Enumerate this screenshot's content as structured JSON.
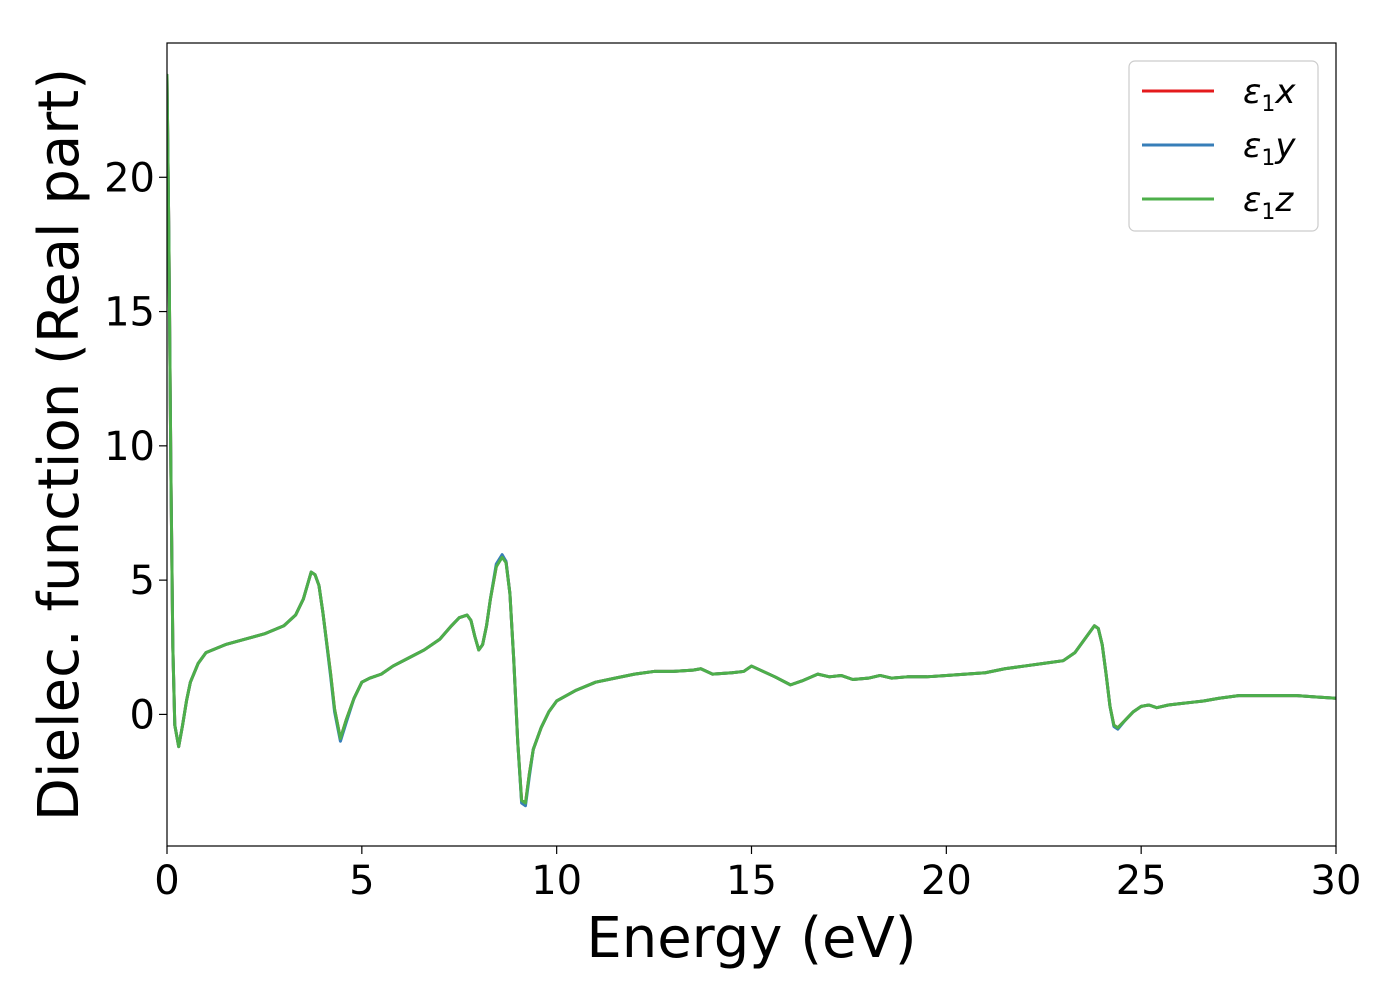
{
  "chart_data": {
    "type": "line",
    "xlabel": "Energy (eV)",
    "ylabel": "Dielec. function (Real part)",
    "xlim": [
      0,
      30
    ],
    "ylim": [
      -4.9,
      25.0
    ],
    "xticks": [
      0,
      5,
      10,
      15,
      20,
      25,
      30
    ],
    "yticks": [
      0,
      5,
      10,
      15,
      20
    ],
    "grid": false,
    "legend_position": "top-right",
    "series": [
      {
        "name": "ε1x",
        "legend": {
          "symbol": "ε",
          "sub": "1",
          "var": "x"
        },
        "color": "#e41a1c",
        "x": [
          0.0,
          0.05,
          0.1,
          0.15,
          0.2,
          0.3,
          0.4,
          0.5,
          0.6,
          0.8,
          1.0,
          1.5,
          2.0,
          2.5,
          3.0,
          3.3,
          3.5,
          3.6,
          3.7,
          3.8,
          3.9,
          4.0,
          4.2,
          4.3,
          4.45,
          4.6,
          4.8,
          5.0,
          5.2,
          5.5,
          5.8,
          6.2,
          6.6,
          7.0,
          7.3,
          7.5,
          7.7,
          7.8,
          7.9,
          8.0,
          8.1,
          8.2,
          8.3,
          8.45,
          8.6,
          8.7,
          8.8,
          8.9,
          9.0,
          9.1,
          9.2,
          9.3,
          9.4,
          9.6,
          9.8,
          10.0,
          10.5,
          11.0,
          11.5,
          12.0,
          12.5,
          13.0,
          13.5,
          13.7,
          14.0,
          14.5,
          14.8,
          15.0,
          15.3,
          15.6,
          16.0,
          16.3,
          16.7,
          17.0,
          17.3,
          17.6,
          18.0,
          18.3,
          18.6,
          19.0,
          19.5,
          20.0,
          20.5,
          21.0,
          21.5,
          22.0,
          22.5,
          23.0,
          23.3,
          23.6,
          23.8,
          23.9,
          24.0,
          24.1,
          24.2,
          24.3,
          24.4,
          24.6,
          24.8,
          25.0,
          25.2,
          25.4,
          25.7,
          26.0,
          26.3,
          26.6,
          27.0,
          27.5,
          28.0,
          28.5,
          29.0,
          29.5,
          30.0
        ],
        "y": [
          23.8,
          17.5,
          9.0,
          2.5,
          -0.4,
          -1.2,
          -0.4,
          0.5,
          1.2,
          1.9,
          2.3,
          2.6,
          2.8,
          3.0,
          3.3,
          3.7,
          4.3,
          4.8,
          5.3,
          5.2,
          4.8,
          3.8,
          1.5,
          0.2,
          -0.9,
          -0.2,
          0.6,
          1.2,
          1.35,
          1.5,
          1.8,
          2.1,
          2.4,
          2.8,
          3.3,
          3.6,
          3.7,
          3.5,
          2.9,
          2.4,
          2.6,
          3.3,
          4.3,
          5.5,
          5.9,
          5.7,
          4.5,
          2.0,
          -1.0,
          -3.2,
          -3.3,
          -2.2,
          -1.3,
          -0.5,
          0.1,
          0.5,
          0.9,
          1.2,
          1.35,
          1.5,
          1.6,
          1.6,
          1.65,
          1.7,
          1.5,
          1.55,
          1.6,
          1.8,
          1.6,
          1.4,
          1.1,
          1.25,
          1.5,
          1.4,
          1.45,
          1.3,
          1.35,
          1.45,
          1.35,
          1.4,
          1.4,
          1.45,
          1.5,
          1.55,
          1.7,
          1.8,
          1.9,
          2.0,
          2.3,
          2.9,
          3.3,
          3.2,
          2.6,
          1.5,
          0.3,
          -0.4,
          -0.5,
          -0.2,
          0.1,
          0.3,
          0.35,
          0.25,
          0.35,
          0.4,
          0.45,
          0.5,
          0.6,
          0.7,
          0.7,
          0.7,
          0.7,
          0.65,
          0.6
        ]
      },
      {
        "name": "ε1y",
        "legend": {
          "symbol": "ε",
          "sub": "1",
          "var": "y"
        },
        "color": "#377eb8",
        "x": [
          0.0,
          0.05,
          0.1,
          0.15,
          0.2,
          0.3,
          0.4,
          0.5,
          0.6,
          0.8,
          1.0,
          1.5,
          2.0,
          2.5,
          3.0,
          3.3,
          3.5,
          3.6,
          3.7,
          3.8,
          3.9,
          4.0,
          4.2,
          4.3,
          4.45,
          4.6,
          4.8,
          5.0,
          5.2,
          5.5,
          5.8,
          6.2,
          6.6,
          7.0,
          7.3,
          7.5,
          7.7,
          7.8,
          7.9,
          8.0,
          8.1,
          8.2,
          8.3,
          8.45,
          8.6,
          8.7,
          8.8,
          8.9,
          9.0,
          9.1,
          9.2,
          9.3,
          9.4,
          9.6,
          9.8,
          10.0,
          10.5,
          11.0,
          11.5,
          12.0,
          12.5,
          13.0,
          13.5,
          13.7,
          14.0,
          14.5,
          14.8,
          15.0,
          15.3,
          15.6,
          16.0,
          16.3,
          16.7,
          17.0,
          17.3,
          17.6,
          18.0,
          18.3,
          18.6,
          19.0,
          19.5,
          20.0,
          20.5,
          21.0,
          21.5,
          22.0,
          22.5,
          23.0,
          23.3,
          23.6,
          23.8,
          23.9,
          24.0,
          24.1,
          24.2,
          24.3,
          24.4,
          24.6,
          24.8,
          25.0,
          25.2,
          25.4,
          25.7,
          26.0,
          26.3,
          26.6,
          27.0,
          27.5,
          28.0,
          28.5,
          29.0,
          29.5,
          30.0
        ],
        "y": [
          23.8,
          17.5,
          9.0,
          2.5,
          -0.4,
          -1.2,
          -0.4,
          0.5,
          1.2,
          1.9,
          2.3,
          2.6,
          2.8,
          3.0,
          3.3,
          3.7,
          4.3,
          4.8,
          5.3,
          5.2,
          4.8,
          3.8,
          1.4,
          0.1,
          -1.0,
          -0.3,
          0.6,
          1.2,
          1.35,
          1.5,
          1.8,
          2.1,
          2.4,
          2.8,
          3.3,
          3.6,
          3.7,
          3.5,
          2.9,
          2.4,
          2.6,
          3.3,
          4.3,
          5.6,
          5.95,
          5.7,
          4.5,
          2.0,
          -1.0,
          -3.3,
          -3.4,
          -2.3,
          -1.3,
          -0.5,
          0.1,
          0.5,
          0.9,
          1.2,
          1.35,
          1.5,
          1.6,
          1.6,
          1.65,
          1.7,
          1.5,
          1.55,
          1.6,
          1.8,
          1.6,
          1.4,
          1.1,
          1.25,
          1.5,
          1.4,
          1.45,
          1.3,
          1.35,
          1.45,
          1.35,
          1.4,
          1.4,
          1.45,
          1.5,
          1.55,
          1.7,
          1.8,
          1.9,
          2.0,
          2.3,
          2.9,
          3.3,
          3.2,
          2.6,
          1.5,
          0.3,
          -0.45,
          -0.55,
          -0.2,
          0.1,
          0.3,
          0.35,
          0.25,
          0.35,
          0.4,
          0.45,
          0.5,
          0.6,
          0.7,
          0.7,
          0.7,
          0.7,
          0.65,
          0.6
        ]
      },
      {
        "name": "ε1z",
        "legend": {
          "symbol": "ε",
          "sub": "1",
          "var": "z"
        },
        "color": "#4daf4a",
        "x": [
          0.0,
          0.05,
          0.1,
          0.15,
          0.2,
          0.3,
          0.4,
          0.5,
          0.6,
          0.8,
          1.0,
          1.5,
          2.0,
          2.5,
          3.0,
          3.3,
          3.5,
          3.6,
          3.7,
          3.8,
          3.9,
          4.0,
          4.2,
          4.3,
          4.45,
          4.6,
          4.8,
          5.0,
          5.2,
          5.5,
          5.8,
          6.2,
          6.6,
          7.0,
          7.3,
          7.5,
          7.7,
          7.8,
          7.9,
          8.0,
          8.1,
          8.2,
          8.3,
          8.45,
          8.6,
          8.7,
          8.8,
          8.9,
          9.0,
          9.1,
          9.2,
          9.3,
          9.4,
          9.6,
          9.8,
          10.0,
          10.5,
          11.0,
          11.5,
          12.0,
          12.5,
          13.0,
          13.5,
          13.7,
          14.0,
          14.5,
          14.8,
          15.0,
          15.3,
          15.6,
          16.0,
          16.3,
          16.7,
          17.0,
          17.3,
          17.6,
          18.0,
          18.3,
          18.6,
          19.0,
          19.5,
          20.0,
          20.5,
          21.0,
          21.5,
          22.0,
          22.5,
          23.0,
          23.3,
          23.6,
          23.8,
          23.9,
          24.0,
          24.1,
          24.2,
          24.3,
          24.4,
          24.6,
          24.8,
          25.0,
          25.2,
          25.4,
          25.7,
          26.0,
          26.3,
          26.6,
          27.0,
          27.5,
          28.0,
          28.5,
          29.0,
          29.5,
          30.0
        ],
        "y": [
          23.8,
          17.5,
          9.0,
          2.5,
          -0.4,
          -1.2,
          -0.4,
          0.5,
          1.2,
          1.9,
          2.3,
          2.6,
          2.8,
          3.0,
          3.3,
          3.7,
          4.3,
          4.8,
          5.3,
          5.2,
          4.8,
          3.8,
          1.5,
          0.2,
          -0.9,
          -0.2,
          0.6,
          1.2,
          1.35,
          1.5,
          1.8,
          2.1,
          2.4,
          2.8,
          3.3,
          3.6,
          3.7,
          3.5,
          2.9,
          2.4,
          2.6,
          3.3,
          4.3,
          5.5,
          5.85,
          5.65,
          4.5,
          2.0,
          -1.0,
          -3.2,
          -3.3,
          -2.2,
          -1.3,
          -0.5,
          0.1,
          0.5,
          0.9,
          1.2,
          1.35,
          1.5,
          1.6,
          1.6,
          1.65,
          1.7,
          1.5,
          1.55,
          1.6,
          1.8,
          1.6,
          1.4,
          1.1,
          1.25,
          1.5,
          1.4,
          1.45,
          1.3,
          1.35,
          1.45,
          1.35,
          1.4,
          1.4,
          1.45,
          1.5,
          1.55,
          1.7,
          1.8,
          1.9,
          2.0,
          2.3,
          2.9,
          3.3,
          3.2,
          2.6,
          1.5,
          0.3,
          -0.4,
          -0.5,
          -0.2,
          0.1,
          0.3,
          0.35,
          0.25,
          0.35,
          0.4,
          0.45,
          0.5,
          0.6,
          0.7,
          0.7,
          0.7,
          0.7,
          0.65,
          0.6
        ]
      }
    ]
  }
}
